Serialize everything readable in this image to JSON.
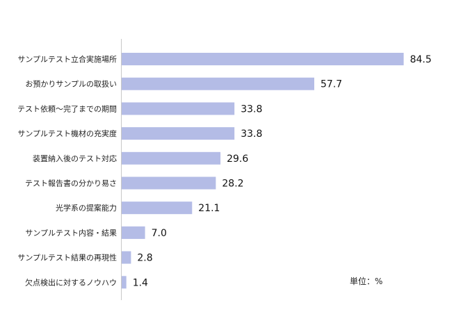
{
  "chart_data": {
    "type": "bar",
    "orientation": "horizontal",
    "categories": [
      "サンプルテスト立合実施場所",
      "お預かりサンプルの取扱い",
      "テスト依頼～完了までの期間",
      "サンプルテスト機材の充実度",
      "装置納入後のテスト対応",
      "テスト報告書の分かり易さ",
      "光学系の提案能力",
      "サンプルテスト内容・結果",
      "サンプルテスト結果の再現性",
      "欠点検出に対するノウハウ"
    ],
    "values": [
      84.5,
      57.7,
      33.8,
      33.8,
      29.6,
      28.2,
      21.1,
      7.0,
      2.8,
      1.4
    ],
    "value_labels": [
      "84.5",
      "57.7",
      "33.8",
      "33.8",
      "29.6",
      "28.2",
      "21.1",
      "7.0",
      "2.8",
      "1.4"
    ],
    "unit_note": "単位：%",
    "xlim": [
      0,
      100
    ],
    "grid": false,
    "legend": "none",
    "colors": {
      "bar": "#b4bce6",
      "axis": "#c8c8c8"
    }
  }
}
